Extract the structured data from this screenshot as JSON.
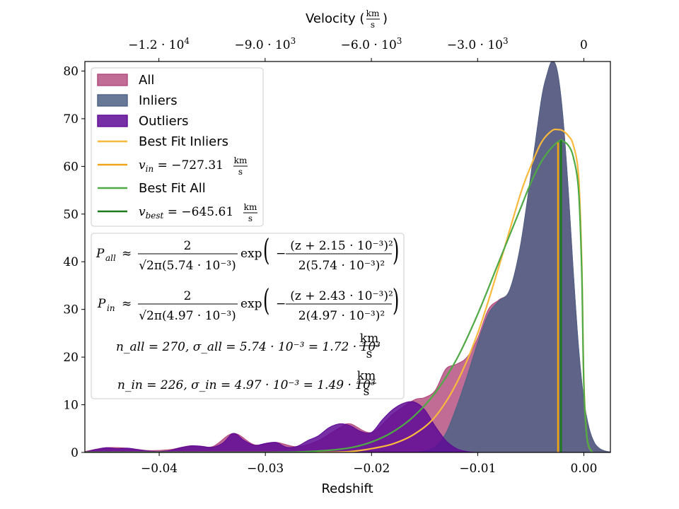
{
  "chart_data": {
    "type": "area",
    "xlabel": "Redshift",
    "xlabel_top": "Velocity (km/s)",
    "xlim": [
      -0.047,
      0.0025
    ],
    "ylim": [
      0,
      82
    ],
    "x_ticks": [
      "−0.04",
      "−0.03",
      "−0.02",
      "−0.01",
      "0.00"
    ],
    "y_ticks": [
      "0",
      "10",
      "20",
      "30",
      "40",
      "50",
      "60",
      "70",
      "80"
    ],
    "top_ticks": [
      "−1.2 · 10",
      "−9.0 · 10",
      "−6.0 · 10",
      "−3.0 · 10",
      "0"
    ],
    "top_tick_exponents": [
      "4",
      "3",
      "3",
      "3",
      ""
    ],
    "top_tick_values": [
      -12000,
      -9000,
      -6000,
      -3000,
      0
    ],
    "colors": {
      "all": "#b0477b",
      "inliers": "#4c6285",
      "outliers": "#5f0a96",
      "fit_inliers": "#f8b93c",
      "v_in": "#f0a313",
      "fit_all": "#4fa945",
      "v_best": "#1b7a1b"
    },
    "legend": {
      "placement": "upper-left",
      "items": [
        {
          "key": "all",
          "label": "All",
          "kind": "patch"
        },
        {
          "key": "inliers",
          "label": "Inliers",
          "kind": "patch"
        },
        {
          "key": "outliers",
          "label": "Outliers",
          "kind": "patch"
        },
        {
          "key": "fit_inliers",
          "label": "Best Fit Inliers",
          "kind": "line"
        },
        {
          "key": "v_in",
          "label": "v_in = −727.31 km/s",
          "kind": "line"
        },
        {
          "key": "fit_all",
          "label": "Best Fit All",
          "kind": "line"
        },
        {
          "key": "v_best",
          "label": "v_best = −645.61 km/s",
          "kind": "line"
        }
      ]
    },
    "v_in_label": {
      "var": "v",
      "sub": "in",
      "value": "= −727.31",
      "unit_num": "km",
      "unit_den": "s"
    },
    "v_best_label": {
      "var": "v",
      "sub": "best",
      "value": "= −645.61",
      "unit_num": "km",
      "unit_den": "s"
    },
    "annotations": {
      "p_all": {
        "lhs": "P",
        "sub": "all",
        "approx": "≈",
        "num": "2",
        "den": "√2π(5.74 · 10⁻³)",
        "exp": "exp",
        "exp_num": "(z + 2.15 · 10⁻³)²",
        "exp_den": "2(5.74 · 10⁻³)²"
      },
      "p_in": {
        "lhs": "P",
        "sub": "in",
        "approx": "≈",
        "num": "2",
        "den": "√2π(4.97 · 10⁻³)",
        "exp": "exp",
        "exp_num": "(z + 2.43 · 10⁻³)²",
        "exp_den": "2(4.97 · 10⁻³)²"
      },
      "n_all": "n_all = 270, σ_all = 5.74 · 10⁻³ = 1.72 · 10³",
      "n_in": "n_in = 226, σ_in = 4.97 · 10⁻³ = 1.49 · 10³",
      "unit_num": "km",
      "unit_den": "s"
    },
    "series": [
      {
        "key": "all",
        "kind": "fill",
        "x": [
          -0.047,
          -0.045,
          -0.043,
          -0.041,
          -0.039,
          -0.037,
          -0.035,
          -0.033,
          -0.031,
          -0.029,
          -0.027,
          -0.025,
          -0.023,
          -0.022,
          -0.02,
          -0.018,
          -0.016,
          -0.015,
          -0.014,
          -0.013,
          -0.012,
          -0.011,
          -0.01,
          -0.009,
          -0.008,
          -0.007,
          -0.006,
          -0.005,
          -0.004,
          -0.0035,
          -0.003,
          -0.0025,
          -0.002,
          -0.0015,
          -0.001,
          -0.0005,
          0.0,
          0.0005,
          0.001,
          0.0015,
          0.002,
          0.0025
        ],
        "y": [
          0.2,
          1.0,
          0.9,
          0.4,
          0.6,
          1.4,
          1.2,
          4.0,
          1.6,
          2.1,
          1.2,
          2.5,
          5.2,
          6.0,
          4.2,
          8.0,
          11.0,
          11.5,
          13.0,
          17.5,
          18.5,
          20.0,
          24.0,
          30.0,
          32.0,
          34.0,
          43.0,
          58.0,
          74.0,
          79.0,
          82.0,
          80.0,
          71.0,
          56.0,
          38.0,
          22.0,
          11.0,
          5.0,
          2.0,
          0.8,
          0.3,
          0.1
        ]
      },
      {
        "key": "inliers",
        "kind": "fill",
        "x": [
          -0.047,
          -0.018,
          -0.016,
          -0.015,
          -0.014,
          -0.013,
          -0.012,
          -0.011,
          -0.01,
          -0.009,
          -0.008,
          -0.007,
          -0.006,
          -0.005,
          -0.004,
          -0.0035,
          -0.003,
          -0.0025,
          -0.002,
          -0.0015,
          -0.001,
          -0.0005,
          0.0,
          0.0005,
          0.001,
          0.0015,
          0.002,
          0.0025
        ],
        "y": [
          0.0,
          0.0,
          0.0,
          0.3,
          1.2,
          4.0,
          9.5,
          16.0,
          23.0,
          29.0,
          31.8,
          34.0,
          43.0,
          58.0,
          74.0,
          79.0,
          82.0,
          80.0,
          71.0,
          56.0,
          38.0,
          22.0,
          11.0,
          5.0,
          2.0,
          0.8,
          0.3,
          0.1
        ]
      },
      {
        "key": "outliers",
        "kind": "fill",
        "x": [
          -0.047,
          -0.046,
          -0.045,
          -0.044,
          -0.043,
          -0.042,
          -0.041,
          -0.04,
          -0.039,
          -0.038,
          -0.037,
          -0.036,
          -0.035,
          -0.034,
          -0.033,
          -0.032,
          -0.031,
          -0.03,
          -0.029,
          -0.028,
          -0.027,
          -0.026,
          -0.025,
          -0.024,
          -0.023,
          -0.022,
          -0.021,
          -0.02,
          -0.019,
          -0.018,
          -0.017,
          -0.016,
          -0.015,
          -0.014,
          -0.013,
          -0.012,
          -0.011,
          -0.01
        ],
        "y": [
          0.1,
          0.6,
          1.0,
          0.8,
          0.9,
          0.6,
          0.3,
          0.2,
          0.4,
          1.0,
          1.4,
          1.3,
          1.1,
          2.0,
          4.0,
          2.5,
          1.5,
          1.9,
          2.1,
          1.1,
          1.3,
          2.5,
          3.5,
          5.2,
          6.0,
          5.6,
          4.4,
          4.2,
          6.8,
          9.0,
          10.3,
          10.6,
          9.0,
          5.5,
          2.5,
          0.8,
          0.2,
          0.0
        ]
      },
      {
        "key": "fit_inliers",
        "kind": "line",
        "x": [
          -0.047,
          -0.03,
          -0.025,
          -0.022,
          -0.02,
          -0.018,
          -0.016,
          -0.014,
          -0.012,
          -0.01,
          -0.008,
          -0.006,
          -0.005,
          -0.004,
          -0.003,
          -0.0024,
          -0.002,
          -0.0015,
          -0.001,
          -0.0005,
          -0.0002,
          0.0,
          0.0003,
          0.0008
        ],
        "y": [
          0.0,
          0.0,
          0.0,
          0.2,
          0.8,
          1.8,
          3.8,
          7.5,
          14.5,
          25.0,
          39.0,
          54.0,
          60.0,
          65.0,
          67.5,
          67.7,
          67.5,
          66.5,
          64.5,
          58.0,
          40.0,
          15.0,
          3.0,
          0.0
        ]
      },
      {
        "key": "fit_all",
        "kind": "line",
        "x": [
          -0.047,
          -0.03,
          -0.025,
          -0.022,
          -0.02,
          -0.018,
          -0.016,
          -0.014,
          -0.012,
          -0.01,
          -0.008,
          -0.006,
          -0.005,
          -0.004,
          -0.003,
          -0.0022,
          -0.002,
          -0.0015,
          -0.001,
          -0.0005,
          -0.0002,
          0.0,
          0.0003,
          0.0008
        ],
        "y": [
          0.0,
          0.0,
          0.3,
          1.0,
          2.2,
          4.3,
          7.6,
          12.5,
          19.5,
          29.0,
          40.0,
          51.0,
          56.5,
          61.0,
          64.0,
          65.5,
          65.3,
          64.5,
          62.0,
          55.0,
          38.0,
          14.0,
          3.0,
          0.0
        ]
      },
      {
        "key": "v_in",
        "kind": "vline",
        "x": -0.00243,
        "y": 65.0
      },
      {
        "key": "v_best",
        "kind": "vline",
        "x": -0.00215,
        "y": 65.5
      }
    ]
  }
}
